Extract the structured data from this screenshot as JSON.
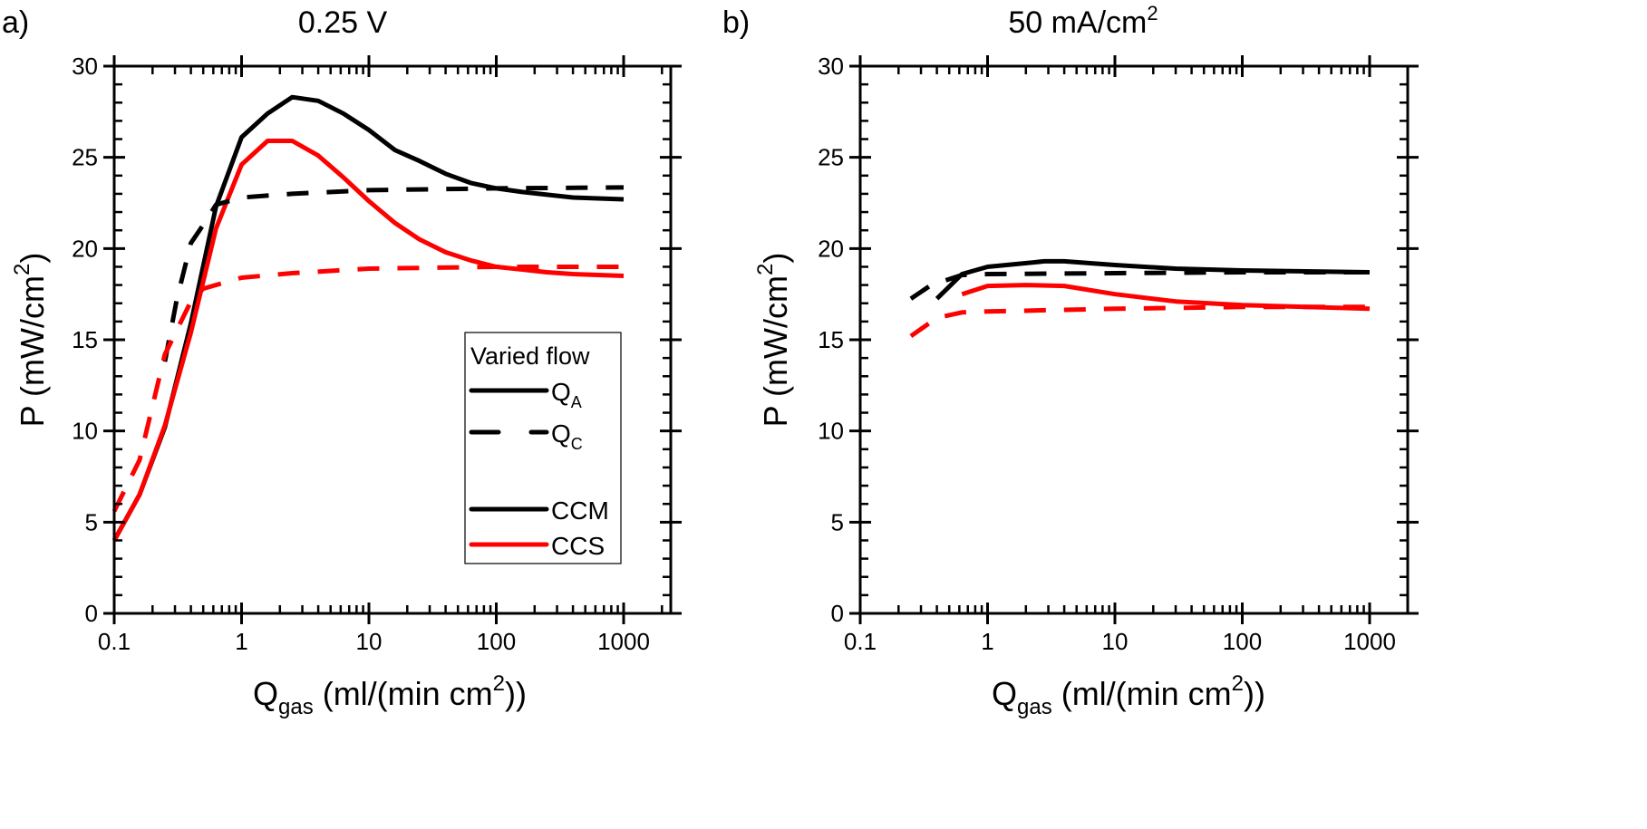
{
  "chart_data": [
    {
      "type": "line",
      "panel_label": "a)",
      "title": "0.25 V",
      "xlabel": {
        "main": "Q",
        "sub": "gas",
        "rest": " (ml/(min cm",
        "sup": "2",
        "end": "))"
      },
      "ylabel": {
        "main": "P (mW/cm",
        "sup": "2",
        "end": ")"
      },
      "xscale": "log",
      "xlim": [
        0.1,
        2400
      ],
      "ylim": [
        0,
        30
      ],
      "xticks": [
        "0.1",
        "1",
        "10",
        "100",
        "1000"
      ],
      "yticks": [
        "0",
        "5",
        "10",
        "15",
        "20",
        "25",
        "30"
      ],
      "grid": false,
      "legend": {
        "placement": "bottom-right",
        "title": "Varied flow",
        "entries": [
          {
            "main": "Q",
            "sub": "A",
            "style": "solid",
            "color": "#000000"
          },
          {
            "main": "Q",
            "sub": "C",
            "style": "dashed",
            "color": "#000000"
          },
          {
            "main": "",
            "sub": "",
            "style": "none",
            "color": "#000000"
          },
          {
            "main": "CCM",
            "sub": "",
            "style": "solid",
            "color": "#000000"
          },
          {
            "main": "CCS",
            "sub": "",
            "style": "solid",
            "color": "#ff0000"
          }
        ]
      },
      "series": [
        {
          "flow": "Q_A",
          "cell": "CCM",
          "color": "#000000",
          "style": "solid",
          "x": [
            0.1,
            0.158,
            0.25,
            0.4,
            0.63,
            1,
            1.6,
            2.5,
            4,
            6.3,
            10,
            16,
            25,
            40,
            63,
            100,
            160,
            250,
            400,
            630,
            1000
          ],
          "y": [
            4.0,
            6.5,
            10.2,
            15.9,
            22.3,
            26.1,
            27.4,
            28.3,
            28.1,
            27.4,
            26.5,
            25.4,
            24.8,
            24.1,
            23.6,
            23.3,
            23.1,
            22.95,
            22.8,
            22.75,
            22.7
          ]
        },
        {
          "flow": "Q_A",
          "cell": "CCS",
          "color": "#ff0000",
          "style": "solid",
          "x": [
            0.1,
            0.158,
            0.25,
            0.4,
            0.63,
            1,
            1.6,
            2.5,
            4,
            6.3,
            10,
            16,
            25,
            40,
            63,
            100,
            160,
            250,
            400,
            630,
            1000
          ],
          "y": [
            4.0,
            6.5,
            10.3,
            15.4,
            21.1,
            24.6,
            25.9,
            25.9,
            25.1,
            23.9,
            22.6,
            21.4,
            20.5,
            19.8,
            19.35,
            19.0,
            18.85,
            18.7,
            18.6,
            18.55,
            18.5
          ]
        },
        {
          "flow": "Q_C",
          "cell": "CCM",
          "color": "#000000",
          "style": "dashed",
          "x": [
            0.25,
            0.31,
            0.4,
            0.5,
            0.63,
            1,
            2.5,
            10,
            100,
            1000
          ],
          "y": [
            13.8,
            17.2,
            20.3,
            21.3,
            22.4,
            22.8,
            23.0,
            23.2,
            23.3,
            23.35
          ]
        },
        {
          "flow": "Q_C",
          "cell": "CCS",
          "color": "#ff0000",
          "style": "dashed",
          "x": [
            0.1,
            0.158,
            0.25,
            0.4,
            0.5,
            1,
            2.5,
            10,
            100,
            1000
          ],
          "y": [
            5.6,
            8.4,
            14.2,
            17.1,
            17.8,
            18.4,
            18.65,
            18.9,
            19.0,
            19.0
          ]
        }
      ]
    },
    {
      "type": "line",
      "panel_label": "b)",
      "title": {
        "main": "50 mA/cm",
        "sup": "2"
      },
      "xlabel": {
        "main": "Q",
        "sub": "gas",
        "rest": " (ml/(min cm",
        "sup": "2",
        "end": "))"
      },
      "ylabel": {
        "main": "P (mW/cm",
        "sup": "2",
        "end": ")"
      },
      "xscale": "log",
      "xlim": [
        0.1,
        2400
      ],
      "ylim": [
        0,
        30
      ],
      "xticks": [
        "0.1",
        "1",
        "10",
        "100",
        "1000"
      ],
      "yticks": [
        "0",
        "5",
        "10",
        "15",
        "20",
        "25",
        "30"
      ],
      "grid": false,
      "series": [
        {
          "flow": "Q_A",
          "cell": "CCM",
          "color": "#000000",
          "style": "solid",
          "x": [
            0.4,
            0.63,
            1,
            2.8,
            4,
            10,
            30,
            100,
            1000
          ],
          "y": [
            17.25,
            18.6,
            19.0,
            19.3,
            19.3,
            19.1,
            18.9,
            18.8,
            18.7
          ]
        },
        {
          "flow": "Q_A",
          "cell": "CCS",
          "color": "#ff0000",
          "style": "solid",
          "x": [
            0.63,
            1,
            2,
            4,
            10,
            30,
            100,
            1000
          ],
          "y": [
            17.5,
            17.95,
            18.0,
            17.95,
            17.5,
            17.1,
            16.9,
            16.7
          ]
        },
        {
          "flow": "Q_C",
          "cell": "CCM",
          "color": "#000000",
          "style": "dashed",
          "x": [
            0.25,
            0.36,
            0.63,
            1,
            10,
            100,
            1000
          ],
          "y": [
            17.25,
            18.0,
            18.55,
            18.6,
            18.65,
            18.7,
            18.7
          ]
        },
        {
          "flow": "Q_C",
          "cell": "CCS",
          "color": "#ff0000",
          "style": "dashed",
          "x": [
            0.25,
            0.4,
            0.63,
            1,
            10,
            100,
            1000
          ],
          "y": [
            15.2,
            16.2,
            16.5,
            16.55,
            16.7,
            16.8,
            16.8
          ]
        }
      ]
    }
  ]
}
